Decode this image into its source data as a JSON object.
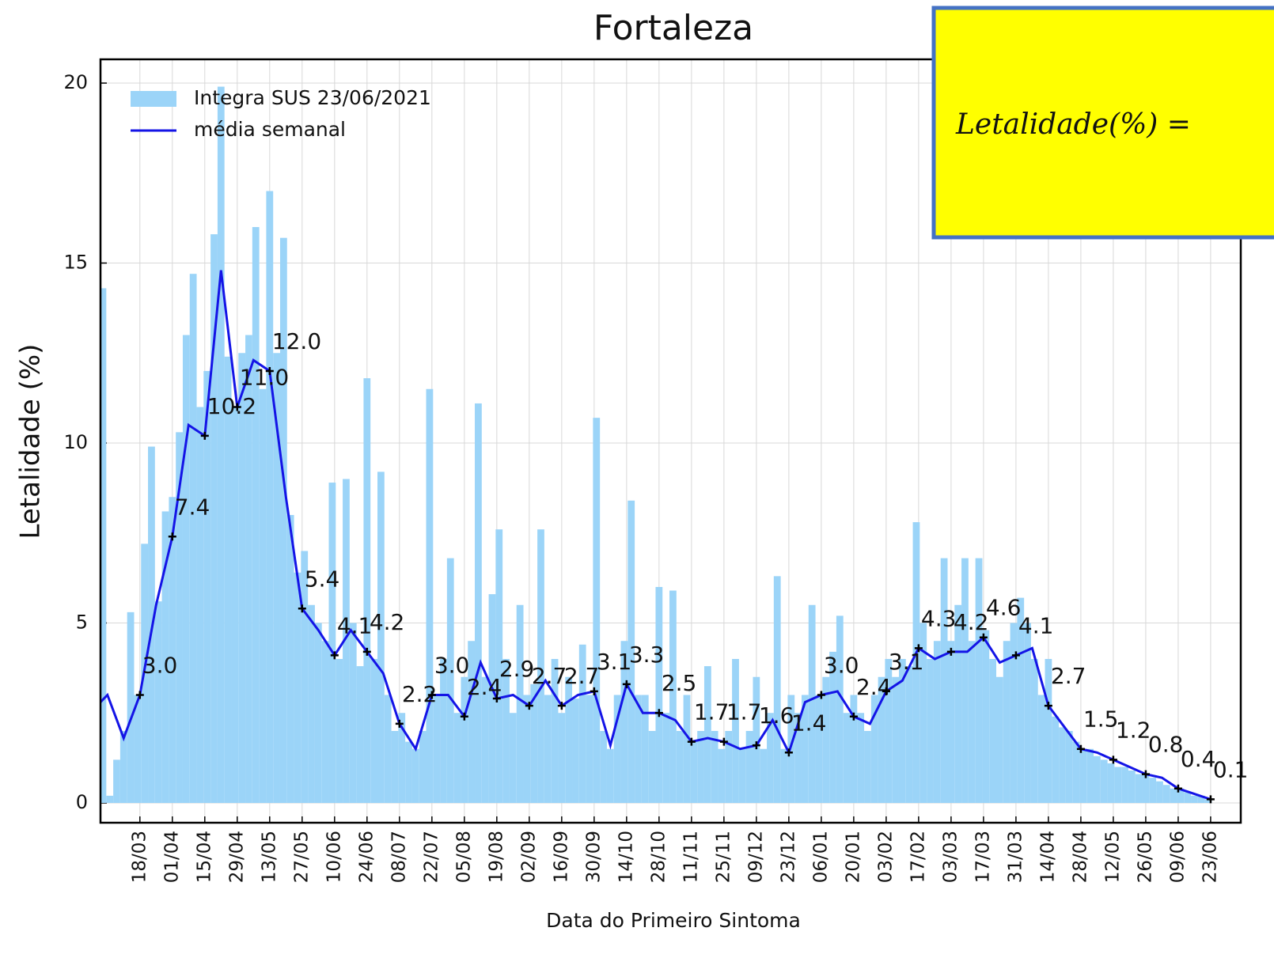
{
  "chart_data": {
    "type": "bar_line",
    "title": "Fortaleza",
    "xlabel": "Data do Primeiro Sintoma",
    "ylabel": "Letalidade (%)",
    "annotation": "Letalidade(%) =",
    "legend": "upper left",
    "grid": true,
    "xlim": [
      -17,
      475
    ],
    "ylim": [
      -0.55,
      20.66
    ],
    "yticks": [
      0,
      5,
      10,
      15,
      20
    ],
    "xticks": [
      {
        "value": 0,
        "label": "18/03"
      },
      {
        "value": 14,
        "label": "01/04"
      },
      {
        "value": 28,
        "label": "15/04"
      },
      {
        "value": 42,
        "label": "29/04"
      },
      {
        "value": 56,
        "label": "13/05"
      },
      {
        "value": 70,
        "label": "27/05"
      },
      {
        "value": 84,
        "label": "10/06"
      },
      {
        "value": 98,
        "label": "24/06"
      },
      {
        "value": 112,
        "label": "08/07"
      },
      {
        "value": 126,
        "label": "22/07"
      },
      {
        "value": 140,
        "label": "05/08"
      },
      {
        "value": 154,
        "label": "19/08"
      },
      {
        "value": 168,
        "label": "02/09"
      },
      {
        "value": 182,
        "label": "16/09"
      },
      {
        "value": 196,
        "label": "30/09"
      },
      {
        "value": 210,
        "label": "14/10"
      },
      {
        "value": 224,
        "label": "28/10"
      },
      {
        "value": 238,
        "label": "11/11"
      },
      {
        "value": 252,
        "label": "25/11"
      },
      {
        "value": 266,
        "label": "09/12"
      },
      {
        "value": 280,
        "label": "23/12"
      },
      {
        "value": 294,
        "label": "06/01"
      },
      {
        "value": 308,
        "label": "20/01"
      },
      {
        "value": 322,
        "label": "03/02"
      },
      {
        "value": 336,
        "label": "17/02"
      },
      {
        "value": 350,
        "label": "03/03"
      },
      {
        "value": 364,
        "label": "17/03"
      },
      {
        "value": 378,
        "label": "31/03"
      },
      {
        "value": 392,
        "label": "14/04"
      },
      {
        "value": 406,
        "label": "28/04"
      },
      {
        "value": 420,
        "label": "12/05"
      },
      {
        "value": 434,
        "label": "26/05"
      },
      {
        "value": 448,
        "label": "09/06"
      },
      {
        "value": 462,
        "label": "23/06"
      }
    ],
    "series": [
      {
        "name": "Integra SUS 23/06/2021",
        "type": "bar",
        "color": "#9bd4f8",
        "x": [
          -16,
          -13,
          -10,
          -7,
          -4,
          -1,
          2,
          5,
          8,
          11,
          14,
          17,
          20,
          23,
          26,
          29,
          32,
          35,
          38,
          41,
          44,
          47,
          50,
          53,
          56,
          59,
          62,
          65,
          68,
          71,
          74,
          77,
          80,
          83,
          86,
          89,
          92,
          95,
          98,
          101,
          104,
          107,
          110,
          113,
          116,
          119,
          122,
          125,
          128,
          131,
          134,
          137,
          140,
          143,
          146,
          149,
          152,
          155,
          158,
          161,
          164,
          167,
          170,
          173,
          176,
          179,
          182,
          185,
          188,
          191,
          194,
          197,
          200,
          203,
          206,
          209,
          212,
          215,
          218,
          221,
          224,
          227,
          230,
          233,
          236,
          239,
          242,
          245,
          248,
          251,
          254,
          257,
          260,
          263,
          266,
          269,
          272,
          275,
          278,
          281,
          284,
          287,
          290,
          293,
          296,
          299,
          302,
          305,
          308,
          311,
          314,
          317,
          320,
          323,
          326,
          329,
          332,
          335,
          338,
          341,
          344,
          347,
          350,
          353,
          356,
          359,
          362,
          365,
          368,
          371,
          374,
          377,
          380,
          383,
          386,
          389,
          392,
          395,
          398,
          401,
          404,
          407,
          410,
          413,
          416,
          419,
          422,
          425,
          428,
          431,
          434,
          437,
          440,
          443,
          446,
          449,
          452,
          455,
          458,
          461
        ],
        "values": [
          14.3,
          0.2,
          1.2,
          2.0,
          5.3,
          3.0,
          7.2,
          9.9,
          5.6,
          8.1,
          8.5,
          10.3,
          13.0,
          14.7,
          11.0,
          12.0,
          15.8,
          19.9,
          12.4,
          11.0,
          12.5,
          13.0,
          16.0,
          11.5,
          17.0,
          12.5,
          15.7,
          8.0,
          6.4,
          7.0,
          5.5,
          5.0,
          4.5,
          8.9,
          4.0,
          9.0,
          5.0,
          3.8,
          11.8,
          4.0,
          9.2,
          3.0,
          2.0,
          2.5,
          1.7,
          1.5,
          2.0,
          11.5,
          3.0,
          4.0,
          6.8,
          2.5,
          3.5,
          4.5,
          11.1,
          3.5,
          5.8,
          7.6,
          4.0,
          2.5,
          5.5,
          3.0,
          3.3,
          7.6,
          3.0,
          4.0,
          2.5,
          3.5,
          2.9,
          4.4,
          3.0,
          10.7,
          2.0,
          1.5,
          3.0,
          4.5,
          8.4,
          3.0,
          3.0,
          2.0,
          6.0,
          2.5,
          5.9,
          2.0,
          3.0,
          1.7,
          2.0,
          3.8,
          2.0,
          1.5,
          2.0,
          4.0,
          1.5,
          2.0,
          3.5,
          1.5,
          2.5,
          6.3,
          1.5,
          3.0,
          2.5,
          3.0,
          5.5,
          3.0,
          3.5,
          4.2,
          5.2,
          2.5,
          3.0,
          2.5,
          2.0,
          3.0,
          3.5,
          4.0,
          3.5,
          4.0,
          3.8,
          7.8,
          5.0,
          4.0,
          4.5,
          6.8,
          4.5,
          5.5,
          6.8,
          4.5,
          6.8,
          4.8,
          4.0,
          3.5,
          4.5,
          5.0,
          5.7,
          5.0,
          4.0,
          3.0,
          4.0,
          2.4,
          2.1,
          2.0,
          1.7,
          1.5,
          1.5,
          1.3,
          1.2,
          1.1,
          1.0,
          1.0,
          0.9,
          0.8,
          0.8,
          0.7,
          0.6,
          0.5,
          0.4,
          0.4,
          0.3,
          0.2,
          0.2,
          0.1
        ]
      },
      {
        "name": "média  semanal",
        "type": "line",
        "color": "#1414e6",
        "x": [
          -17,
          -14,
          -7,
          0,
          7,
          14,
          21,
          28,
          35,
          42,
          49,
          56,
          63,
          70,
          77,
          84,
          91,
          98,
          105,
          112,
          119,
          126,
          133,
          140,
          147,
          154,
          161,
          168,
          175,
          182,
          189,
          196,
          203,
          210,
          217,
          224,
          231,
          238,
          245,
          252,
          259,
          266,
          273,
          280,
          287,
          294,
          301,
          308,
          315,
          322,
          329,
          336,
          343,
          350,
          357,
          364,
          371,
          378,
          385,
          392,
          399,
          406,
          413,
          420,
          427,
          434,
          441,
          448,
          455,
          462
        ],
        "values": [
          2.8,
          3.0,
          1.8,
          3.0,
          5.5,
          7.4,
          10.5,
          10.2,
          14.8,
          11.0,
          12.3,
          12.0,
          8.5,
          5.4,
          4.8,
          4.1,
          4.8,
          4.2,
          3.6,
          2.2,
          1.5,
          3.0,
          3.0,
          2.4,
          3.9,
          2.9,
          3.0,
          2.7,
          3.4,
          2.7,
          3.0,
          3.1,
          1.6,
          3.3,
          2.5,
          2.5,
          2.3,
          1.7,
          1.8,
          1.7,
          1.5,
          1.6,
          2.3,
          1.4,
          2.8,
          3.0,
          3.1,
          2.4,
          2.2,
          3.1,
          3.4,
          4.3,
          4.0,
          4.2,
          4.2,
          4.6,
          3.9,
          4.1,
          4.3,
          2.7,
          2.1,
          1.5,
          1.4,
          1.2,
          1.0,
          0.8,
          0.7,
          0.4,
          0.25,
          0.1
        ]
      }
    ],
    "labeled_points": {
      "x": [
        0,
        14,
        28,
        42,
        56,
        70,
        84,
        98,
        112,
        126,
        140,
        154,
        168,
        182,
        196,
        210,
        224,
        238,
        252,
        266,
        280,
        294,
        308,
        322,
        336,
        350,
        364,
        378,
        392,
        406,
        420,
        434,
        448,
        462
      ],
      "values": [
        3.0,
        7.4,
        10.2,
        11.0,
        12.0,
        5.4,
        4.1,
        4.2,
        2.2,
        3.0,
        2.4,
        2.9,
        2.7,
        2.7,
        3.1,
        3.3,
        2.5,
        1.7,
        1.7,
        1.6,
        1.4,
        3.0,
        2.4,
        3.1,
        4.3,
        4.2,
        4.6,
        4.1,
        2.7,
        1.5,
        1.2,
        0.8,
        0.4,
        0.1
      ],
      "value_labels": [
        "3.0",
        "7.4",
        "10.2",
        "11.0",
        "12.0",
        "5.4",
        "4.1",
        "4.2",
        "2.2",
        "3.0",
        "2.4",
        "2.9",
        "2.7",
        "2.7",
        "3.1",
        "3.3",
        "2.5",
        "1.7",
        "1.7",
        "1.6",
        "1.4",
        "3.0",
        "2.4",
        "3.1",
        "4.3",
        "4.2",
        "4.6",
        "4.1",
        "2.7",
        "1.5",
        "1.2",
        "0.8",
        "0.4",
        "0.1"
      ]
    }
  }
}
